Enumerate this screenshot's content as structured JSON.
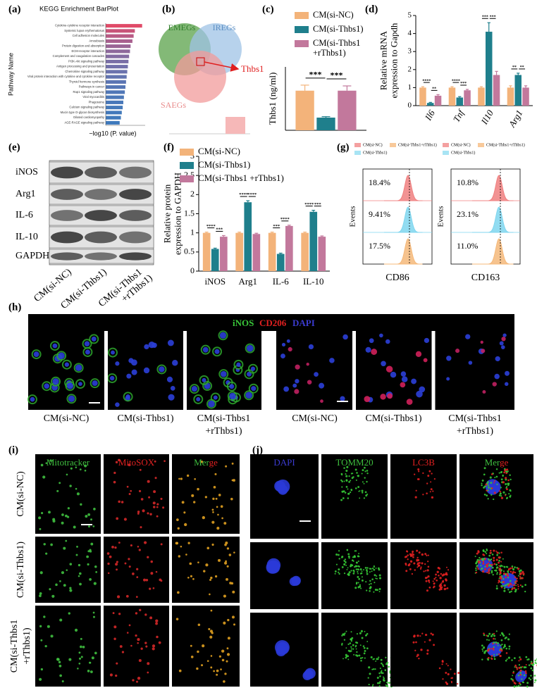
{
  "chart_data": [
    {
      "type": "hbar",
      "panel": "(a)",
      "title": "KEGG Enrichment BarPlot",
      "x_label": "−log10 (P. value)",
      "y_label": "Pathway Name",
      "categories": [
        "Cytokine-cytokine receptor interaction",
        "Systemic lupus erythematosus",
        "Cell adhesion molecules",
        "Amoebiasis",
        "Protein digestion and absorption",
        "ECM-receptor interaction",
        "Complement and coagulation cascades",
        "PI3K-Akt signaling pathway",
        "Antigen processing and presentation",
        "Chemokine signaling pathway",
        "Viral protein interaction with cytokine and cytokine receptor",
        "Thyroid hormone synthesis",
        "Pathways in cancer",
        "Rap1 signaling pathway",
        "Viral myocarditis",
        "Phagosome",
        "Calcium signaling pathway",
        "Mucin type O-glycan biosynthesis",
        "Dilated cardiomyopathy",
        "AGE-RAGE signaling pathway"
      ],
      "values": [
        12,
        9.6,
        9.2,
        8.8,
        8.2,
        8.0,
        7.7,
        7.5,
        7.3,
        7.1,
        6.9,
        6.7,
        6.5,
        6.3,
        6.0,
        5.8,
        5.6,
        5.3,
        5.0,
        4.6
      ],
      "colors": [
        "#e04a68",
        "#c85378",
        "#b85a84",
        "#a8608e",
        "#9a6596",
        "#8e699c",
        "#846ca2",
        "#7a6fa6",
        "#7270aa",
        "#6a72ad",
        "#6274b0",
        "#5b75b3",
        "#5576b5",
        "#5077b7",
        "#4c78b8",
        "#4878b9",
        "#4579ba",
        "#4279bb",
        "#4079bb",
        "#3e79bc"
      ],
      "xlim": [
        0,
        13
      ]
    },
    {
      "type": "groupbar",
      "panel": "(c)",
      "y_label": "Thbs1 (ng/ml)",
      "categories": [
        null
      ],
      "series": [
        {
          "name": "CM(si-NC)",
          "color": "#f3b37a",
          "values": [
            25
          ],
          "errors": [
            3.5
          ]
        },
        {
          "name": "CM(si-Thbs1)",
          "color": "#1f7f8c",
          "values": [
            8
          ],
          "errors": [
            0.6
          ]
        },
        {
          "name": "CM(si-Thbs1 +rThbs1)",
          "color": "#c2789c",
          "values": [
            25
          ],
          "errors": [
            3
          ]
        }
      ],
      "ylim": [
        0,
        40
      ],
      "significance": [
        [
          "***",
          "***"
        ]
      ]
    },
    {
      "type": "groupbar",
      "panel": "(d)",
      "y_label": [
        "Relative mRNA",
        "expression to Gapdh"
      ],
      "categories": [
        "Il6",
        "Tnf",
        "Il10",
        "Arg1"
      ],
      "series": [
        {
          "name": "CM(si-NC)",
          "color": "#f3b37a",
          "values": [
            1,
            1,
            1,
            1
          ],
          "errors": [
            0.05,
            0.05,
            0.05,
            0.1
          ]
        },
        {
          "name": "CM(si-Thbs1)",
          "color": "#1f7f8c",
          "values": [
            0.15,
            0.45,
            4.1,
            1.7
          ],
          "errors": [
            0.03,
            0.05,
            0.5,
            0.1
          ]
        },
        {
          "name": "CM(si-Thbs1 +rThbs1)",
          "color": "#c2789c",
          "values": [
            0.55,
            0.85,
            1.7,
            1.0
          ],
          "errors": [
            0.06,
            0.05,
            0.2,
            0.1
          ]
        }
      ],
      "ylim": [
        0,
        5
      ],
      "yticks": [
        0,
        1,
        2,
        3,
        4,
        5
      ],
      "significance": [
        [
          "****",
          "**"
        ],
        [
          "****",
          "***"
        ],
        [
          "***",
          "***"
        ],
        [
          "**",
          "**"
        ]
      ]
    },
    {
      "type": "groupbar",
      "panel": "(f)",
      "y_label": [
        "Relative protein",
        "expression to GAPDH"
      ],
      "categories": [
        "iNOS",
        "Arg1",
        "IL-6",
        "IL-10"
      ],
      "series": [
        {
          "name": "CM(si-NC)",
          "color": "#f3b37a",
          "values": [
            1,
            1,
            1,
            1
          ],
          "errors": [
            0.02,
            0.02,
            0.02,
            0.02
          ]
        },
        {
          "name": "CM(si-Thbs1)",
          "color": "#1f7f8c",
          "values": [
            0.58,
            1.8,
            0.45,
            1.55
          ],
          "errors": [
            0.02,
            0.04,
            0.02,
            0.04
          ]
        },
        {
          "name": "CM(si-Thbs1 +rThbs1)",
          "color": "#c2789c",
          "values": [
            0.9,
            0.97,
            1.18,
            0.9
          ],
          "errors": [
            0.03,
            0.02,
            0.02,
            0.02
          ]
        }
      ],
      "ylim": [
        0,
        3
      ],
      "yticks": [
        0,
        0.5,
        1,
        1.5,
        2,
        2.5,
        3
      ],
      "significance": [
        [
          "****",
          "***"
        ],
        [
          "****",
          "****"
        ],
        [
          "***",
          "****"
        ],
        [
          "****",
          "***"
        ]
      ]
    }
  ],
  "venn": {
    "panel": "(b)",
    "sets": [
      "EMEGs",
      "IREGs",
      "SAEGs"
    ],
    "highlight": "Thbs1"
  },
  "western_blot": {
    "panel": "(e)",
    "proteins": [
      "iNOS",
      "Arg1",
      "IL-6",
      "IL-10",
      "GAPDH"
    ],
    "lanes": [
      [
        "CM(si-NC)"
      ],
      [
        "CM(si-Thbs1)"
      ],
      [
        "CM(si-Thbs1",
        "+rThbs1)"
      ]
    ]
  },
  "flow_cytometry": {
    "panel": "(g)",
    "plots": [
      {
        "legend": [
          "CM(si-NC)",
          "CM(si-Thbs1+rThbs1)",
          "CM(si-Thbs1)"
        ],
        "y_label": "Events",
        "x_label": "CD86",
        "percentages": [
          "18.4%",
          "9.41%",
          "17.5%"
        ]
      },
      {
        "legend": [
          "CM(si-NC)",
          "CM(si-Thbs1+rThbs1)",
          "CM(si-Thbs1)"
        ],
        "y_label": "Events",
        "x_label": "CD163",
        "percentages": [
          "10.8%",
          "23.1%",
          "11.0%"
        ]
      }
    ]
  },
  "immunofluorescence": {
    "panel": "(h)",
    "stains": [
      "iNOS",
      "CD206",
      "DAPI"
    ],
    "captions": [
      [
        "CM(si-NC)"
      ],
      [
        "CM(si-Thbs1)"
      ],
      [
        "CM(si-Thbs1",
        "+rThbs1)"
      ],
      [
        "CM(si-NC)"
      ],
      [
        "CM(si-Thbs1)"
      ],
      [
        "CM(si-Thbs1",
        "+rThbs1)"
      ]
    ]
  },
  "mitochondria": {
    "panel": "(i)",
    "channels": [
      [
        "Mitotracker"
      ],
      [
        "MitoSOX"
      ],
      [
        "Mer",
        "ge"
      ]
    ],
    "rows": [
      [
        "CM(si-NC)"
      ],
      [
        "CM(si-Thbs1)"
      ],
      [
        "CM(si-Thbs1",
        "+rThbs1)"
      ]
    ]
  },
  "mitophagy": {
    "panel": "(j)",
    "channels": [
      [
        "DAPI"
      ],
      [
        "TOMM20"
      ],
      [
        "LC3B"
      ],
      [
        "Mer",
        "ge"
      ]
    ]
  }
}
